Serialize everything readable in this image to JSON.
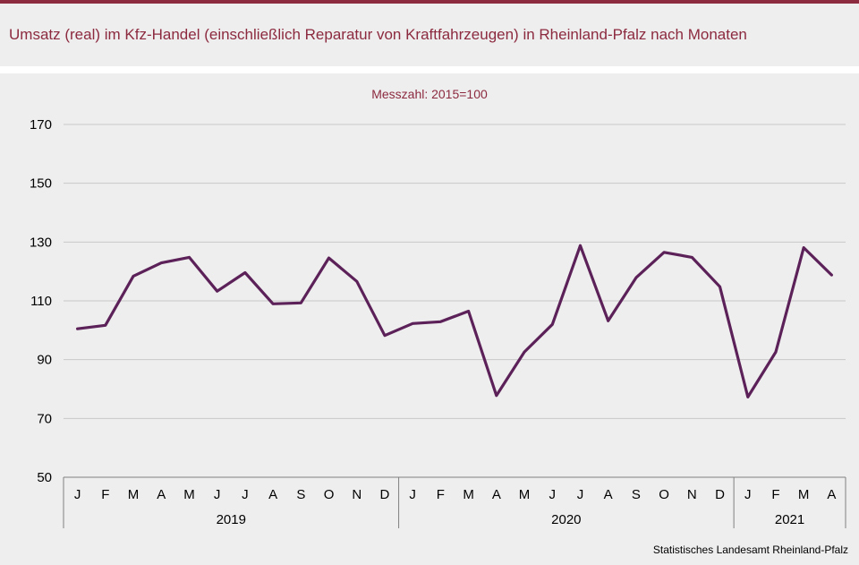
{
  "header": {
    "title": "Umsatz (real) im Kfz-Handel (einschließlich Reparatur von Kraftfahrzeugen) in Rheinland-Pfalz nach Monaten"
  },
  "footer": {
    "source": "Statistisches Landesamt  Rheinland-Pfalz"
  },
  "colors": {
    "accent": "#8c2a3f",
    "line": "#5b2158",
    "grid": "#c8c8c8",
    "background": "#eeeeee"
  },
  "chart_data": {
    "type": "line",
    "subtitle": "Messzahl:  2015=100",
    "ylim": [
      50,
      170
    ],
    "yticks": [
      50,
      70,
      90,
      110,
      130,
      150,
      170
    ],
    "grid": true,
    "legend": "none",
    "months": [
      "J",
      "F",
      "M",
      "A",
      "M",
      "J",
      "J",
      "A",
      "S",
      "O",
      "N",
      "D",
      "J",
      "F",
      "M",
      "A",
      "M",
      "J",
      "J",
      "A",
      "S",
      "O",
      "N",
      "D",
      "J",
      "F",
      "M",
      "A"
    ],
    "years": [
      {
        "label": "2019",
        "months": 12
      },
      {
        "label": "2020",
        "months": 12
      },
      {
        "label": "2021",
        "months": 4
      }
    ],
    "series": [
      {
        "values": [
          100.5,
          101.7,
          118.4,
          122.9,
          124.8,
          113.3,
          119.6,
          109.0,
          109.3,
          124.6,
          116.6,
          98.2,
          102.3,
          102.9,
          106.5,
          77.8,
          92.6,
          102.0,
          128.8,
          103.2,
          117.9,
          126.5,
          124.8,
          114.8,
          77.3,
          92.6,
          128.1,
          118.8
        ]
      }
    ]
  }
}
